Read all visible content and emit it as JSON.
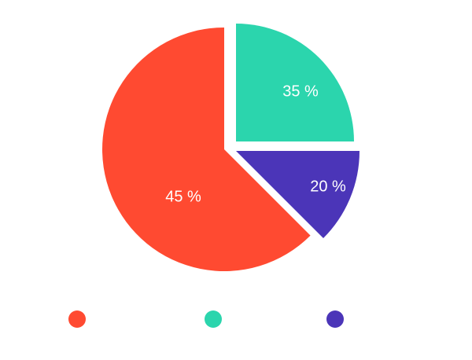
{
  "chart_data": {
    "type": "pie",
    "title": "",
    "legend_position": "bottom",
    "slices": [
      {
        "value": 45,
        "label": "45 %",
        "color": "#ff4a31"
      },
      {
        "value": 35,
        "label": "35 %",
        "color": "#2bd5ad"
      },
      {
        "value": 20,
        "label": "20 %",
        "color": "#4b35b8"
      }
    ]
  }
}
